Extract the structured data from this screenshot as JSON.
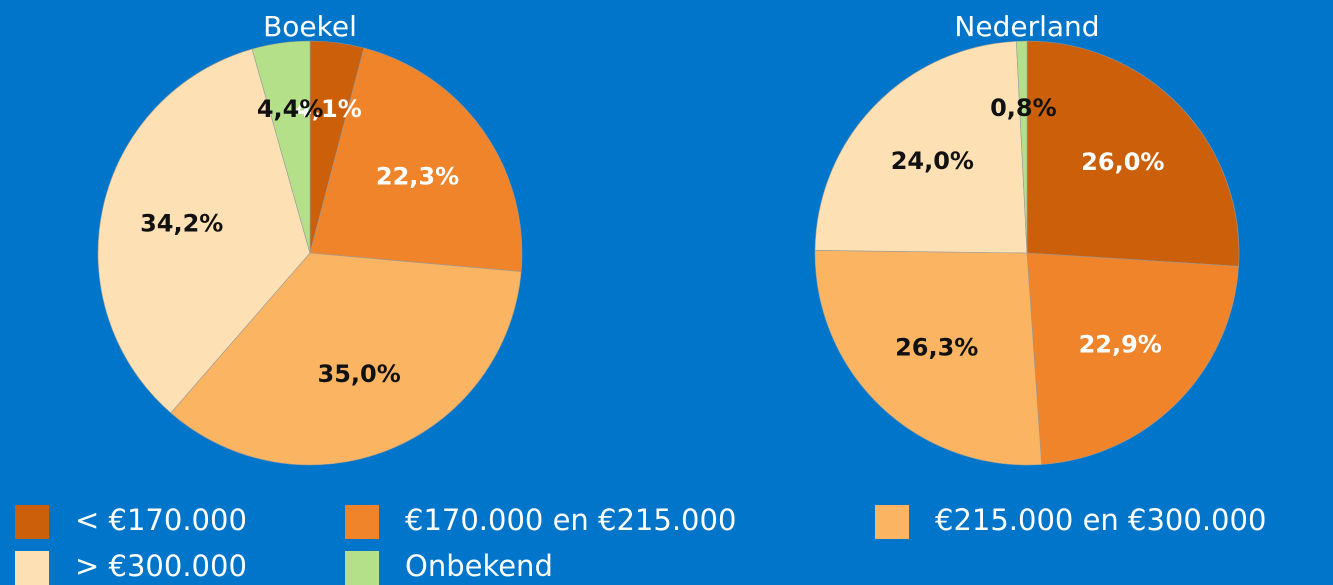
{
  "chart_data": [
    {
      "type": "pie",
      "title": "Boekel",
      "categories": [
        "< €170.000",
        "€170.000 en €215.000",
        "€215.000 en €300.000",
        "> €300.000",
        "Onbekend"
      ],
      "values": [
        4.1,
        22.3,
        35.0,
        34.2,
        4.4
      ],
      "value_labels": [
        "4,1%",
        "22,3%",
        "35,0%",
        "34,2%",
        "4,4%"
      ],
      "colors": [
        "#cc600a",
        "#f0842a",
        "#fbb562",
        "#fde0b4",
        "#b5e08a"
      ]
    },
    {
      "type": "pie",
      "title": "Nederland",
      "categories": [
        "< €170.000",
        "€170.000 en €215.000",
        "€215.000 en €300.000",
        "> €300.000",
        "Onbekend"
      ],
      "values": [
        26.0,
        22.9,
        26.3,
        24.0,
        0.8
      ],
      "value_labels": [
        "26,0%",
        "22,9%",
        "26,3%",
        "24,0%",
        "0,8%"
      ],
      "colors": [
        "#cc600a",
        "#f0842a",
        "#fbb562",
        "#fde0b4",
        "#b5e08a"
      ]
    }
  ]
}
